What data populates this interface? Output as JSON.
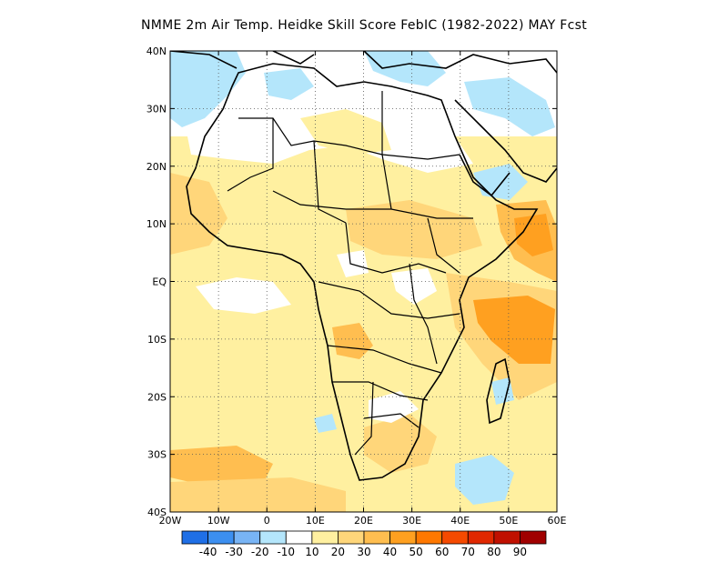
{
  "title": "NMME  2m Air Temp. Heidke Skill Score FebIC (1982-2022) MAY Fcst",
  "map": {
    "lon_range": [
      -20,
      60
    ],
    "lat_range": [
      -40,
      40
    ],
    "lon_ticks": [
      {
        "value": -20,
        "label": "20W"
      },
      {
        "value": -10,
        "label": "10W"
      },
      {
        "value": 0,
        "label": "0"
      },
      {
        "value": 10,
        "label": "10E"
      },
      {
        "value": 20,
        "label": "20E"
      },
      {
        "value": 30,
        "label": "30E"
      },
      {
        "value": 40,
        "label": "40E"
      },
      {
        "value": 50,
        "label": "50E"
      },
      {
        "value": 60,
        "label": "60E"
      }
    ],
    "lat_ticks": [
      {
        "value": 40,
        "label": "40N"
      },
      {
        "value": 30,
        "label": "30N"
      },
      {
        "value": 20,
        "label": "20N"
      },
      {
        "value": 10,
        "label": "10N"
      },
      {
        "value": 0,
        "label": "EQ"
      },
      {
        "value": -10,
        "label": "10S"
      },
      {
        "value": -20,
        "label": "20S"
      },
      {
        "value": -30,
        "label": "30S"
      },
      {
        "value": -40,
        "label": "40S"
      }
    ],
    "grid": true,
    "grid_style": "dotted"
  },
  "colorbar": {
    "colors": [
      "#1f6fe6",
      "#3c8ff0",
      "#78b4f5",
      "#b4e6fb",
      "#ffffff",
      "#fff0a0",
      "#ffd67a",
      "#ffbe50",
      "#ffa020",
      "#ff7800",
      "#f54a00",
      "#e02800",
      "#c01000",
      "#a00000"
    ],
    "labels": [
      "-40",
      "-30",
      "-20",
      "-10",
      "10",
      "20",
      "30",
      "40",
      "50",
      "60",
      "70",
      "80",
      "90"
    ]
  },
  "chart_data": {
    "type": "heatmap",
    "title": "NMME  2m Air Temp. Heidke Skill Score FebIC (1982-2022) MAY Fcst",
    "variable": "Heidke Skill Score",
    "x_range": [
      -20,
      60
    ],
    "y_range": [
      -40,
      40
    ],
    "levels": [
      -40,
      -30,
      -20,
      -10,
      10,
      20,
      30,
      40,
      50,
      60,
      70,
      80,
      90
    ],
    "grid": true
  }
}
